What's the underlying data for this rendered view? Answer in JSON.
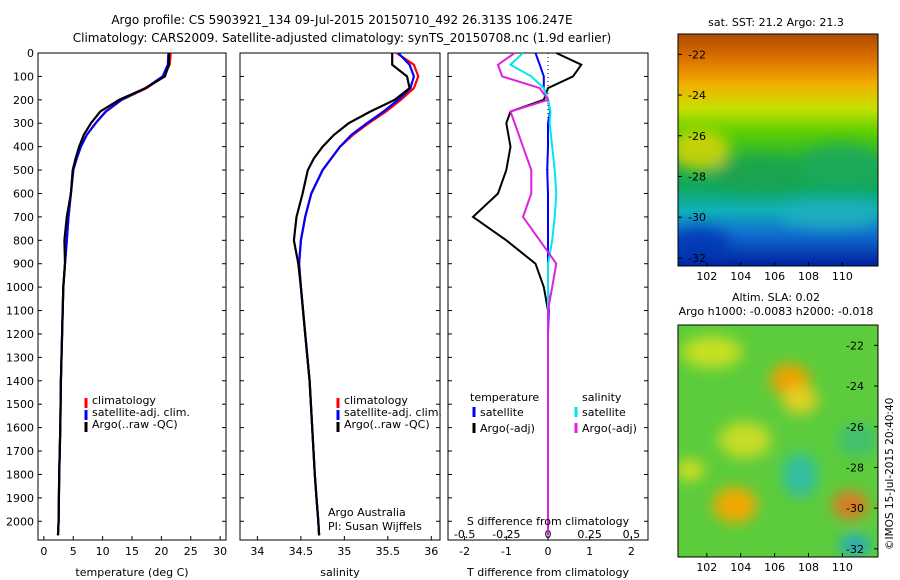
{
  "header": {
    "line1": "Argo profile: CS 5903921_134 09-Jul-2015 20150710_492 26.313S 106.247E",
    "line2": "Climatology: CARS2009. Satellite-adjusted climatology: synTS_20150708.nc (1.9d earlier)"
  },
  "colors": {
    "climatology": "#ff0000",
    "satellite_adj": "#0000ff",
    "argo": "#000000",
    "sal_satellite": "#00e5ee",
    "sal_argo": "#e020e0"
  },
  "depth_axis": {
    "ticks": [
      "0",
      "100",
      "200",
      "300",
      "400",
      "500",
      "600",
      "700",
      "800",
      "900",
      "1000",
      "1100",
      "1200",
      "1300",
      "1400",
      "1500",
      "1600",
      "1700",
      "1800",
      "1900",
      "2000"
    ]
  },
  "temp_panel": {
    "xlabel": "temperature (deg C)",
    "xticks": [
      "0",
      "5",
      "10",
      "15",
      "20",
      "25",
      "30"
    ],
    "legend": [
      "climatology",
      "satellite-adj. clim.",
      "Argo(..raw -QC)"
    ]
  },
  "sal_panel": {
    "xlabel": "salinity",
    "xticks": [
      "34",
      "34.5",
      "35",
      "35.5",
      "36"
    ],
    "legend": [
      "climatology",
      "satellite-adj. clim.",
      "Argo(..raw -QC)"
    ],
    "note_line1": "Argo Australia",
    "note_line2": "PI: Susan Wijffels"
  },
  "diff_panel": {
    "xlabel": "T difference from climatology",
    "xticks": [
      "-2",
      "-1",
      "0",
      "1",
      "2"
    ],
    "s_title": "S difference from climatology",
    "s_ticks": [
      "-0.5",
      "-0.25",
      "0",
      "0.25",
      "0.5"
    ],
    "legend_temp_title": "temperature",
    "legend_sal_title": "salinity",
    "legend_temp": [
      "satellite",
      "Argo(-adj)"
    ],
    "legend_sal": [
      "satellite",
      "Argo(-adj)"
    ]
  },
  "sst_map": {
    "title": "sat. SST: 21.2  Argo: 21.3",
    "yticks": [
      "-22",
      "-24",
      "-26",
      "-28",
      "-30",
      "-32"
    ],
    "xticks": [
      "102",
      "104",
      "106",
      "108",
      "110"
    ]
  },
  "sla_map": {
    "title1": "Altim. SLA: 0.02",
    "title2": "Argo h1000: -0.0083 h2000: -0.018",
    "yticks": [
      "-22",
      "-24",
      "-26",
      "-28",
      "-30",
      "-32"
    ],
    "xticks": [
      "102",
      "104",
      "106",
      "108",
      "110"
    ]
  },
  "footer": {
    "stamp": "©IMOS 15-Jul-2015 20:40:40"
  },
  "chart_data": [
    {
      "type": "line",
      "title": "",
      "xlabel": "temperature (deg C)",
      "ylabel": "",
      "xlim": [
        -1,
        31
      ],
      "ylim": [
        2080,
        0
      ],
      "series": [
        {
          "name": "climatology",
          "x": [
            21.6,
            21.4,
            20.4,
            17.5,
            13.3,
            10.6,
            8.8,
            7.3,
            6.2,
            5.5,
            5.0,
            4.6,
            4.2,
            3.9,
            3.6,
            3.3,
            3.1,
            2.9,
            2.8,
            2.6,
            2.5,
            2.4
          ],
          "y": [
            0,
            50,
            100,
            150,
            200,
            250,
            300,
            350,
            400,
            450,
            500,
            600,
            700,
            800,
            900,
            1000,
            1200,
            1400,
            1600,
            1800,
            2000,
            2060
          ]
        },
        {
          "name": "satellite-adj. clim.",
          "x": [
            21.2,
            21.1,
            20.2,
            17.3,
            13.2,
            10.5,
            8.8,
            7.3,
            6.3,
            5.6,
            5.0,
            4.6,
            4.2,
            3.9,
            3.6,
            3.3,
            3.1,
            2.9,
            2.8,
            2.6,
            2.5,
            2.4
          ],
          "y": [
            0,
            50,
            100,
            150,
            200,
            250,
            300,
            350,
            400,
            450,
            500,
            600,
            700,
            800,
            900,
            1000,
            1200,
            1400,
            1600,
            1800,
            2000,
            2060
          ]
        },
        {
          "name": "Argo(..raw -QC)",
          "x": [
            21.3,
            21.3,
            20.6,
            17.3,
            12.8,
            9.6,
            8.0,
            6.8,
            6.0,
            5.4,
            4.9,
            4.6,
            3.9,
            3.5,
            3.6,
            3.3,
            3.1,
            2.9,
            2.8,
            2.6,
            2.5,
            2.4
          ],
          "y": [
            0,
            50,
            100,
            150,
            200,
            250,
            300,
            350,
            400,
            450,
            500,
            600,
            700,
            800,
            900,
            1000,
            1200,
            1400,
            1600,
            1800,
            2000,
            2060
          ]
        }
      ]
    },
    {
      "type": "line",
      "title": "",
      "xlabel": "salinity",
      "ylabel": "",
      "xlim": [
        33.8,
        36.1
      ],
      "ylim": [
        2080,
        0
      ],
      "series": [
        {
          "name": "climatology",
          "x": [
            35.6,
            35.8,
            35.85,
            35.8,
            35.65,
            35.48,
            35.28,
            35.1,
            34.95,
            34.85,
            34.75,
            34.62,
            34.55,
            34.5,
            34.48,
            34.5,
            34.55,
            34.6,
            34.63,
            34.66,
            34.68,
            34.7,
            34.71
          ],
          "y": [
            0,
            50,
            100,
            150,
            200,
            250,
            300,
            350,
            400,
            450,
            500,
            600,
            700,
            800,
            900,
            1000,
            1200,
            1400,
            1600,
            1800,
            1900,
            2000,
            2060
          ]
        },
        {
          "name": "satellite-adj. clim.",
          "x": [
            35.62,
            35.75,
            35.8,
            35.76,
            35.62,
            35.45,
            35.26,
            35.08,
            34.95,
            34.85,
            34.75,
            34.62,
            34.55,
            34.5,
            34.48,
            34.5,
            34.55,
            34.6,
            34.63,
            34.66,
            34.68,
            34.7,
            34.71
          ],
          "y": [
            0,
            50,
            100,
            150,
            200,
            250,
            300,
            350,
            400,
            450,
            500,
            600,
            700,
            800,
            900,
            1000,
            1200,
            1400,
            1600,
            1800,
            1900,
            2000,
            2060
          ]
        },
        {
          "name": "Argo(..raw -QC)",
          "x": [
            35.55,
            35.55,
            35.72,
            35.75,
            35.58,
            35.3,
            35.05,
            34.88,
            34.75,
            34.65,
            34.58,
            34.52,
            34.45,
            34.42,
            34.47,
            34.5,
            34.55,
            34.6,
            34.63,
            34.66,
            34.68,
            34.7,
            34.71
          ],
          "y": [
            0,
            50,
            100,
            150,
            200,
            250,
            300,
            350,
            400,
            450,
            500,
            600,
            700,
            800,
            900,
            1000,
            1200,
            1400,
            1600,
            1800,
            1900,
            2000,
            2060
          ]
        }
      ]
    },
    {
      "type": "line",
      "title": "",
      "xlabel": "T difference from climatology",
      "ylabel": "",
      "xlim": [
        -2.4,
        2.4
      ],
      "ylim": [
        2080,
        0
      ],
      "series": [
        {
          "name": "temperature satellite",
          "x": [
            -0.3,
            -0.2,
            -0.1,
            -0.1,
            0,
            0.05,
            0,
            0,
            -0.02,
            0,
            0,
            0,
            0,
            0,
            0.02,
            0,
            0,
            0,
            0
          ],
          "y": [
            0,
            50,
            100,
            150,
            200,
            250,
            300,
            400,
            500,
            600,
            700,
            800,
            900,
            1000,
            1100,
            1200,
            1400,
            1600,
            2060
          ]
        },
        {
          "name": "temperature Argo(-adj)",
          "x": [
            0.2,
            0.8,
            0.6,
            0,
            -0.1,
            -0.9,
            -1.0,
            -0.9,
            -1.0,
            -1.2,
            -1.8,
            -1.0,
            -0.3,
            -0.1,
            0,
            0,
            0,
            0,
            0
          ],
          "y": [
            0,
            50,
            100,
            150,
            200,
            250,
            300,
            400,
            500,
            600,
            700,
            800,
            900,
            1000,
            1100,
            1200,
            1400,
            1600,
            2060
          ]
        },
        {
          "name": "salinity satellite",
          "x": [
            -0.3,
            -0.45,
            -0.2,
            -0.05,
            0,
            0.03,
            0.02,
            0.05,
            0.08,
            0.1,
            0.08,
            0.05,
            0,
            0,
            0,
            0,
            0,
            0,
            0
          ],
          "y": [
            0,
            50,
            100,
            150,
            200,
            250,
            300,
            400,
            500,
            600,
            700,
            800,
            900,
            1000,
            1100,
            1200,
            1400,
            1600,
            2060
          ]
        },
        {
          "name": "salinity Argo(-adj)",
          "x": [
            -0.4,
            -0.6,
            -0.55,
            -0.1,
            0,
            -0.45,
            -0.4,
            -0.3,
            -0.2,
            -0.2,
            -0.3,
            -0.1,
            0.1,
            0.05,
            0,
            0,
            0,
            0,
            0
          ],
          "y": [
            0,
            50,
            100,
            150,
            200,
            250,
            300,
            400,
            500,
            600,
            700,
            800,
            900,
            1000,
            1100,
            1200,
            1400,
            1600,
            2060
          ]
        }
      ]
    }
  ]
}
